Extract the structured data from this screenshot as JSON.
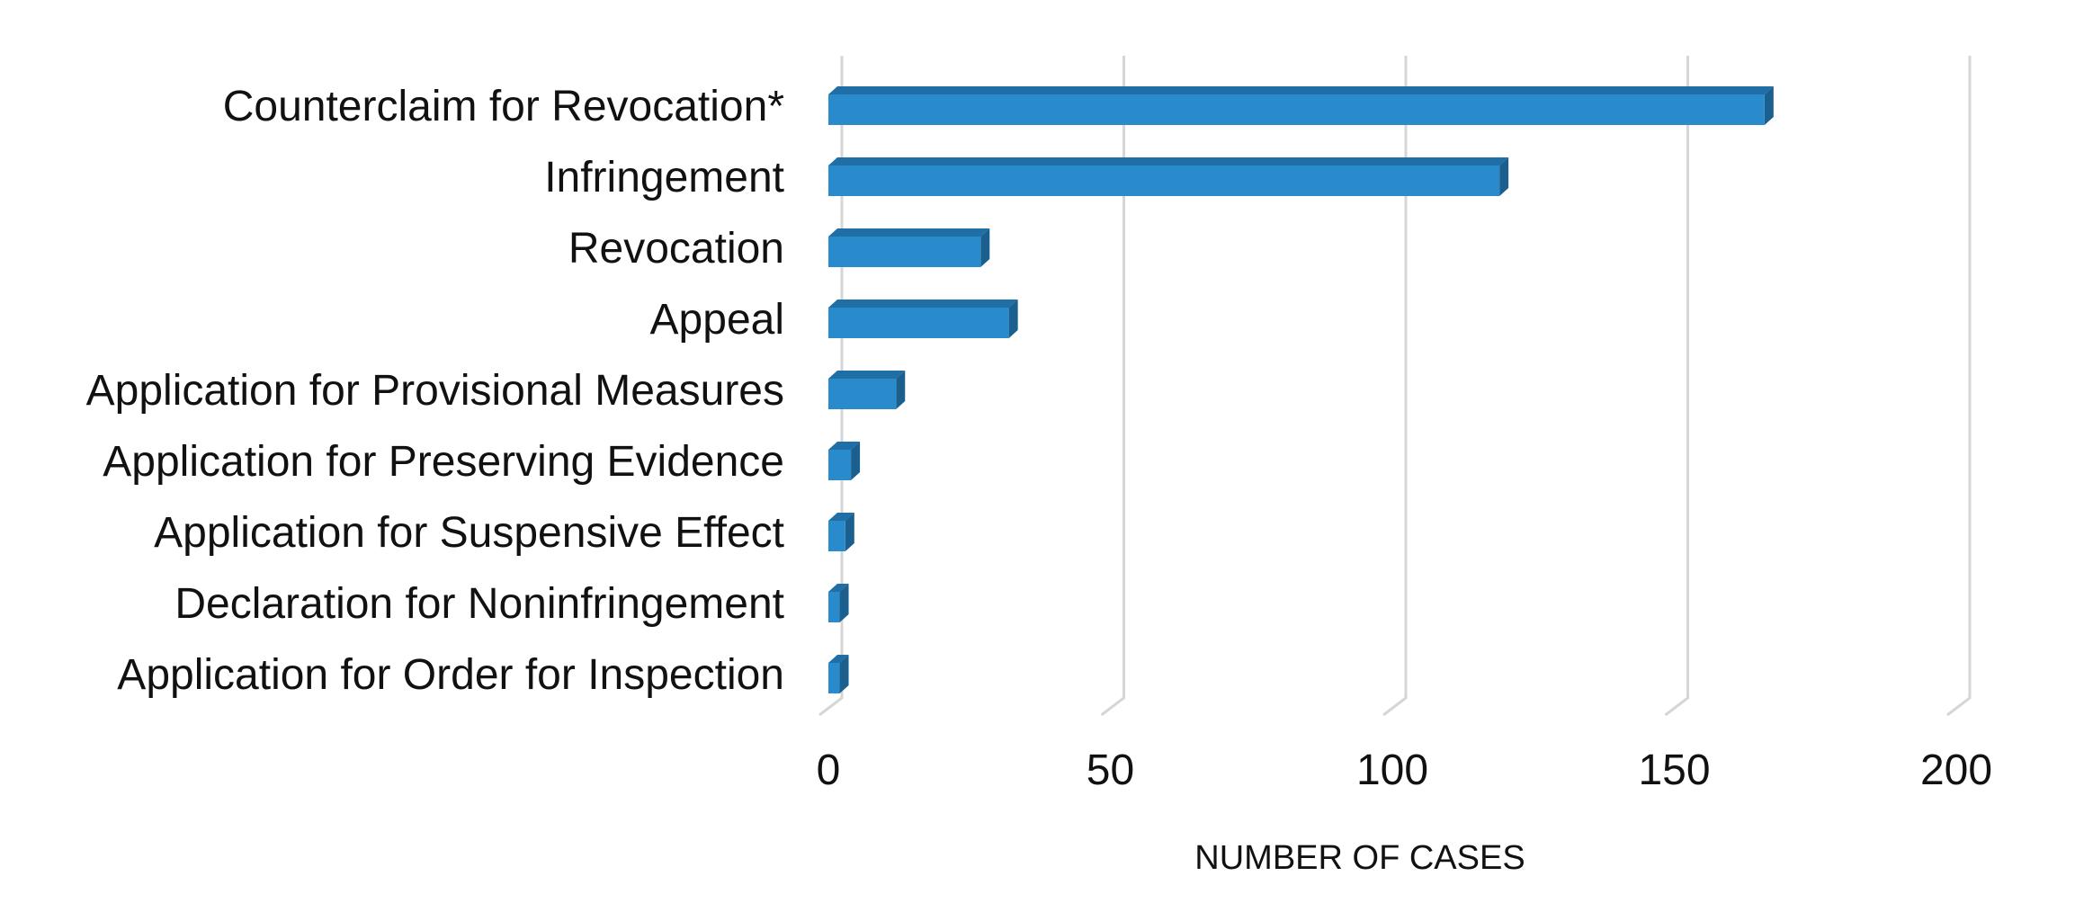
{
  "chart_data": {
    "type": "bar",
    "orientation": "horizontal",
    "style": "3d",
    "categories": [
      "Counterclaim for Revocation*",
      "Infringement",
      "Revocation",
      "Appeal",
      "Application for Provisional Measures",
      "Application for Preserving Evidence",
      "Application for Suspensive Effect",
      "Declaration for Noninfringement",
      "Application for Order for Inspection"
    ],
    "values": [
      166,
      119,
      27,
      32,
      12,
      4,
      3,
      2,
      2
    ],
    "title": "",
    "xlabel": "NUMBER OF CASES",
    "ylabel": "",
    "xlim": [
      0,
      200
    ],
    "xticks": [
      "0",
      "50",
      "100",
      "150",
      "200"
    ],
    "grid": true,
    "legend": "none",
    "colors": {
      "bar_front": "#2a8bcc",
      "bar_top": "#1f6fa6",
      "bar_side": "#1a5f8e",
      "grid": "#d6d6d6",
      "text": "#111111"
    }
  }
}
